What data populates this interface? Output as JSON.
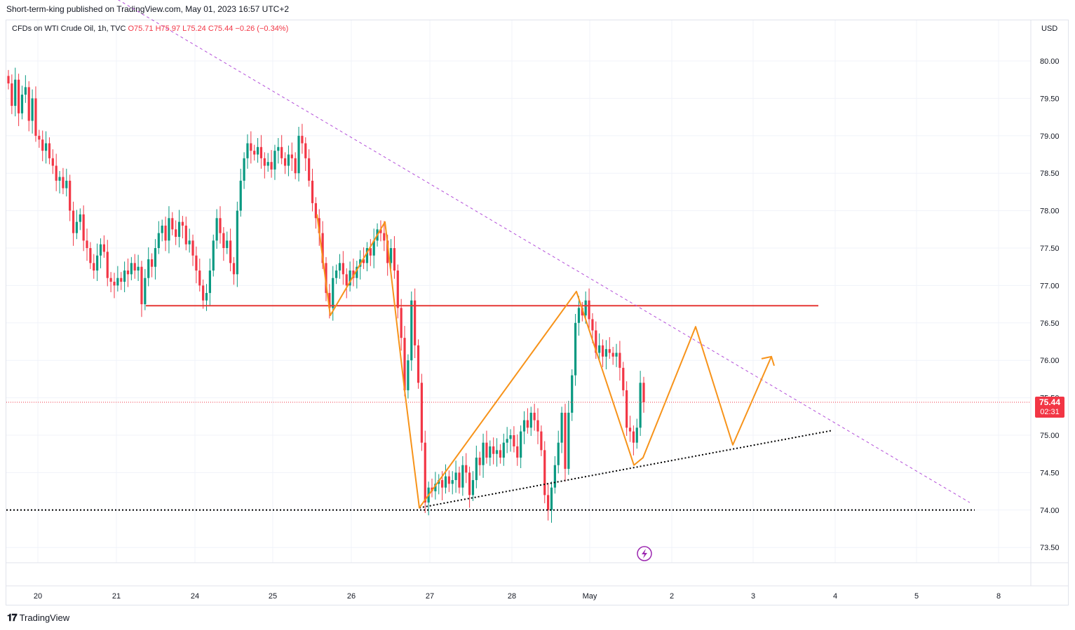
{
  "header": {
    "published_line": "Short-term-king published on TradingView.com, May 01, 2023 16:57 UTC+2"
  },
  "legend": {
    "symbol": "CFDs on WTI Crude Oil, 1h, TVC",
    "open": "O75.71",
    "high": "H75.97",
    "low": "L75.24",
    "close": "C75.44",
    "change": "−0.26 (−0.34%)"
  },
  "axis": {
    "currency": "USD"
  },
  "price_tag": {
    "price": "75.44",
    "countdown": "02:31"
  },
  "footer": {
    "brand": "TradingView"
  },
  "colors": {
    "up": "#089981",
    "down": "#f23645",
    "pattern": "#f7931a",
    "trendline": "#b44fd9",
    "resistance": "#e53935"
  },
  "chart_data": {
    "type": "candlestick",
    "timeframe": "1h",
    "ylim": [
      73.3,
      80.5
    ],
    "y_ticks": [
      80.0,
      79.5,
      79.0,
      78.5,
      78.0,
      77.5,
      77.0,
      76.5,
      76.0,
      75.5,
      75.0,
      74.5,
      74.0,
      73.5
    ],
    "y_tick_labels": [
      "80.00",
      "79.50",
      "79.00",
      "78.50",
      "78.00",
      "77.50",
      "77.00",
      "76.50",
      "76.00",
      "75.50",
      "75.00",
      "74.50",
      "74.00",
      "73.50"
    ],
    "x_tick_labels": [
      "20",
      "21",
      "24",
      "25",
      "26",
      "27",
      "28",
      "May",
      "2",
      "3",
      "4",
      "5",
      "8"
    ],
    "current_price": 75.44,
    "resistance_level": 76.73,
    "support_level": 74.0,
    "rising_support": [
      [
        74.03,
        "27"
      ],
      [
        75.06,
        "4"
      ]
    ],
    "descending_trendline": [
      [
        80.82,
        "21"
      ],
      [
        74.1,
        "8"
      ]
    ],
    "candles_close": [
      79.7,
      79.4,
      79.75,
      79.3,
      79.55,
      79.65,
      79.2,
      79.5,
      79.0,
      78.95,
      78.8,
      78.9,
      78.7,
      78.6,
      78.4,
      78.45,
      78.3,
      78.4,
      78.0,
      77.7,
      77.85,
      77.95,
      77.6,
      77.5,
      77.3,
      77.2,
      77.4,
      77.55,
      77.45,
      77.1,
      77.05,
      77.0,
      77.1,
      77.05,
      77.2,
      77.15,
      77.3,
      77.2,
      77.25,
      76.75,
      77.1,
      77.35,
      77.25,
      77.5,
      77.7,
      77.8,
      77.6,
      77.9,
      77.75,
      77.65,
      77.85,
      77.8,
      77.55,
      77.6,
      77.4,
      77.2,
      77.0,
      76.8,
      76.9,
      77.2,
      77.6,
      77.9,
      77.7,
      77.5,
      77.6,
      77.3,
      77.15,
      78.0,
      78.4,
      78.7,
      78.9,
      78.8,
      78.75,
      78.85,
      78.7,
      78.6,
      78.65,
      78.55,
      78.8,
      78.85,
      78.7,
      78.6,
      78.75,
      78.7,
      78.5,
      79.0,
      78.9,
      78.7,
      78.4,
      78.1,
      77.9,
      77.7,
      77.3,
      76.9,
      76.7,
      77.1,
      77.2,
      77.3,
      77.15,
      77.0,
      77.2,
      77.1,
      77.25,
      77.35,
      77.3,
      77.5,
      77.4,
      77.6,
      77.75,
      77.7,
      77.6,
      77.3,
      77.5,
      77.2,
      76.7,
      76.3,
      75.6,
      76.0,
      76.8,
      76.2,
      75.7,
      74.9,
      74.1,
      74.3,
      74.25,
      74.35,
      74.4,
      74.3,
      74.45,
      74.35,
      74.4,
      74.5,
      74.3,
      74.6,
      74.5,
      74.2,
      74.4,
      74.7,
      74.6,
      74.9,
      74.7,
      74.85,
      74.75,
      74.8,
      74.7,
      74.9,
      74.95,
      75.0,
      74.85,
      74.7,
      75.05,
      75.2,
      75.1,
      75.3,
      75.2,
      75.05,
      74.8,
      74.2,
      74.0,
      74.3,
      74.6,
      74.9,
      75.3,
      74.55,
      75.3,
      75.8,
      76.5,
      76.7,
      76.6,
      76.8,
      76.55,
      76.4,
      76.1,
      76.2,
      76.05,
      76.15,
      76.1,
      76.05,
      76.1,
      75.9,
      75.6,
      75.1,
      75.05,
      74.9,
      75.1,
      75.7,
      75.44
    ]
  }
}
